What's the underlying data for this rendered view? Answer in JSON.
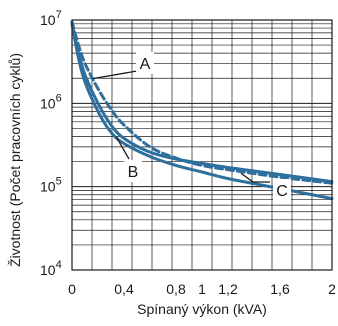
{
  "chart_data": {
    "type": "line",
    "xlabel": "Spínaný výkon (kVA)",
    "ylabel": "Životnost (Počet pracovních cyklů)",
    "x_ticks": [
      {
        "value": 0,
        "label": "0"
      },
      {
        "value": 0.4,
        "label": "0,4"
      },
      {
        "value": 0.8,
        "label": "0,8"
      },
      {
        "value": 1.0,
        "label": "1"
      },
      {
        "value": 1.2,
        "label": "1,2"
      },
      {
        "value": 1.6,
        "label": "1,6"
      },
      {
        "value": 2.0,
        "label": "2"
      }
    ],
    "y_ticks": [
      {
        "value": 10000,
        "base": "10",
        "exp": "4"
      },
      {
        "value": 100000,
        "base": "10",
        "exp": "5"
      },
      {
        "value": 1000000,
        "base": "10",
        "exp": "6"
      },
      {
        "value": 10000000,
        "base": "10",
        "exp": "7"
      }
    ],
    "xlim": [
      0,
      2
    ],
    "ylim": [
      10000,
      10000000
    ],
    "yscale": "log",
    "grid": true,
    "colors": {
      "curve": "#2e6f9e",
      "grid": "#1a1a1a"
    },
    "series": [
      {
        "name": "A",
        "style": "dashed",
        "x": [
          0,
          0.05,
          0.1,
          0.2,
          0.3,
          0.4,
          0.6,
          0.8,
          1.0,
          1.2,
          1.6,
          2.0
        ],
        "y": [
          9500000,
          5000000,
          3000000,
          1500000,
          850000,
          550000,
          300000,
          220000,
          180000,
          160000,
          130000,
          110000
        ]
      },
      {
        "name": "B",
        "style": "solid",
        "x": [
          0,
          0.05,
          0.1,
          0.2,
          0.3,
          0.4,
          0.6,
          0.8,
          1.0,
          1.2,
          1.6,
          2.0
        ],
        "y": [
          9000000,
          3500000,
          1800000,
          800000,
          450000,
          330000,
          230000,
          180000,
          150000,
          125000,
          95000,
          72000
        ]
      },
      {
        "name": "C",
        "style": "solid",
        "x": [
          0,
          0.05,
          0.1,
          0.2,
          0.3,
          0.4,
          0.6,
          0.8,
          1.0,
          1.2,
          1.6,
          2.0
        ],
        "y": [
          9000000,
          4000000,
          2200000,
          1000000,
          550000,
          380000,
          260000,
          215000,
          190000,
          170000,
          140000,
          115000
        ]
      }
    ],
    "callouts": [
      {
        "label": "A",
        "series": "A",
        "x": 0.16,
        "y": 1000000
      },
      {
        "label": "B",
        "series": "B",
        "x": 0.34,
        "y": 320000
      },
      {
        "label": "C",
        "series": "C",
        "x": 1.3,
        "y": 165000
      }
    ]
  }
}
